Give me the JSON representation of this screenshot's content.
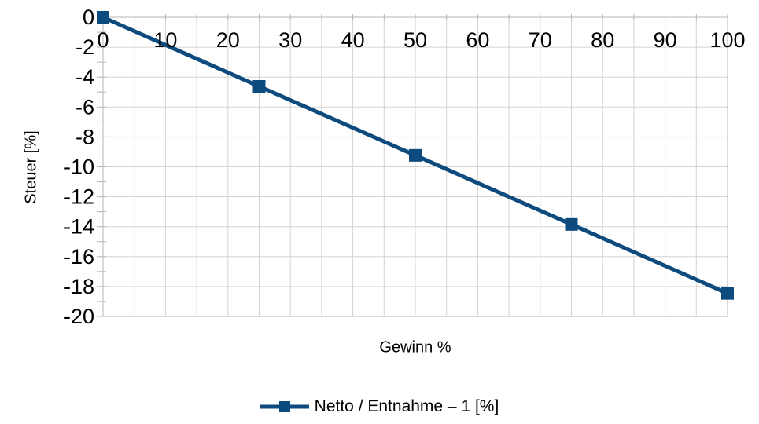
{
  "chart_data": {
    "type": "line",
    "title": "",
    "xlabel": "Gewinn %",
    "ylabel": "Steuer [%]",
    "x": [
      0,
      25,
      50,
      75,
      100
    ],
    "series": [
      {
        "name": "Netto / Entnahme – 1 [%]",
        "values": [
          0,
          -4.62,
          -9.23,
          -13.85,
          -18.46
        ],
        "color": "#0d4a7d",
        "marker": "square",
        "line_width": 5
      }
    ],
    "xlim": [
      0,
      100
    ],
    "ylim": [
      -20,
      0
    ],
    "x_major_ticks": [
      0,
      10,
      20,
      30,
      40,
      50,
      60,
      70,
      80,
      90,
      100
    ],
    "x_minor_step": 5,
    "y_major_ticks": [
      0,
      -2,
      -4,
      -6,
      -8,
      -10,
      -12,
      -14,
      -16,
      -18,
      -20
    ],
    "y_minor_step": 1,
    "grid": true,
    "x_tick_labels_position": "top-inside",
    "legend_position": "bottom",
    "colors": {
      "grid": "#d3d3d3",
      "axis": "#b5b5b5",
      "text": "#000000",
      "background": "#ffffff"
    }
  }
}
